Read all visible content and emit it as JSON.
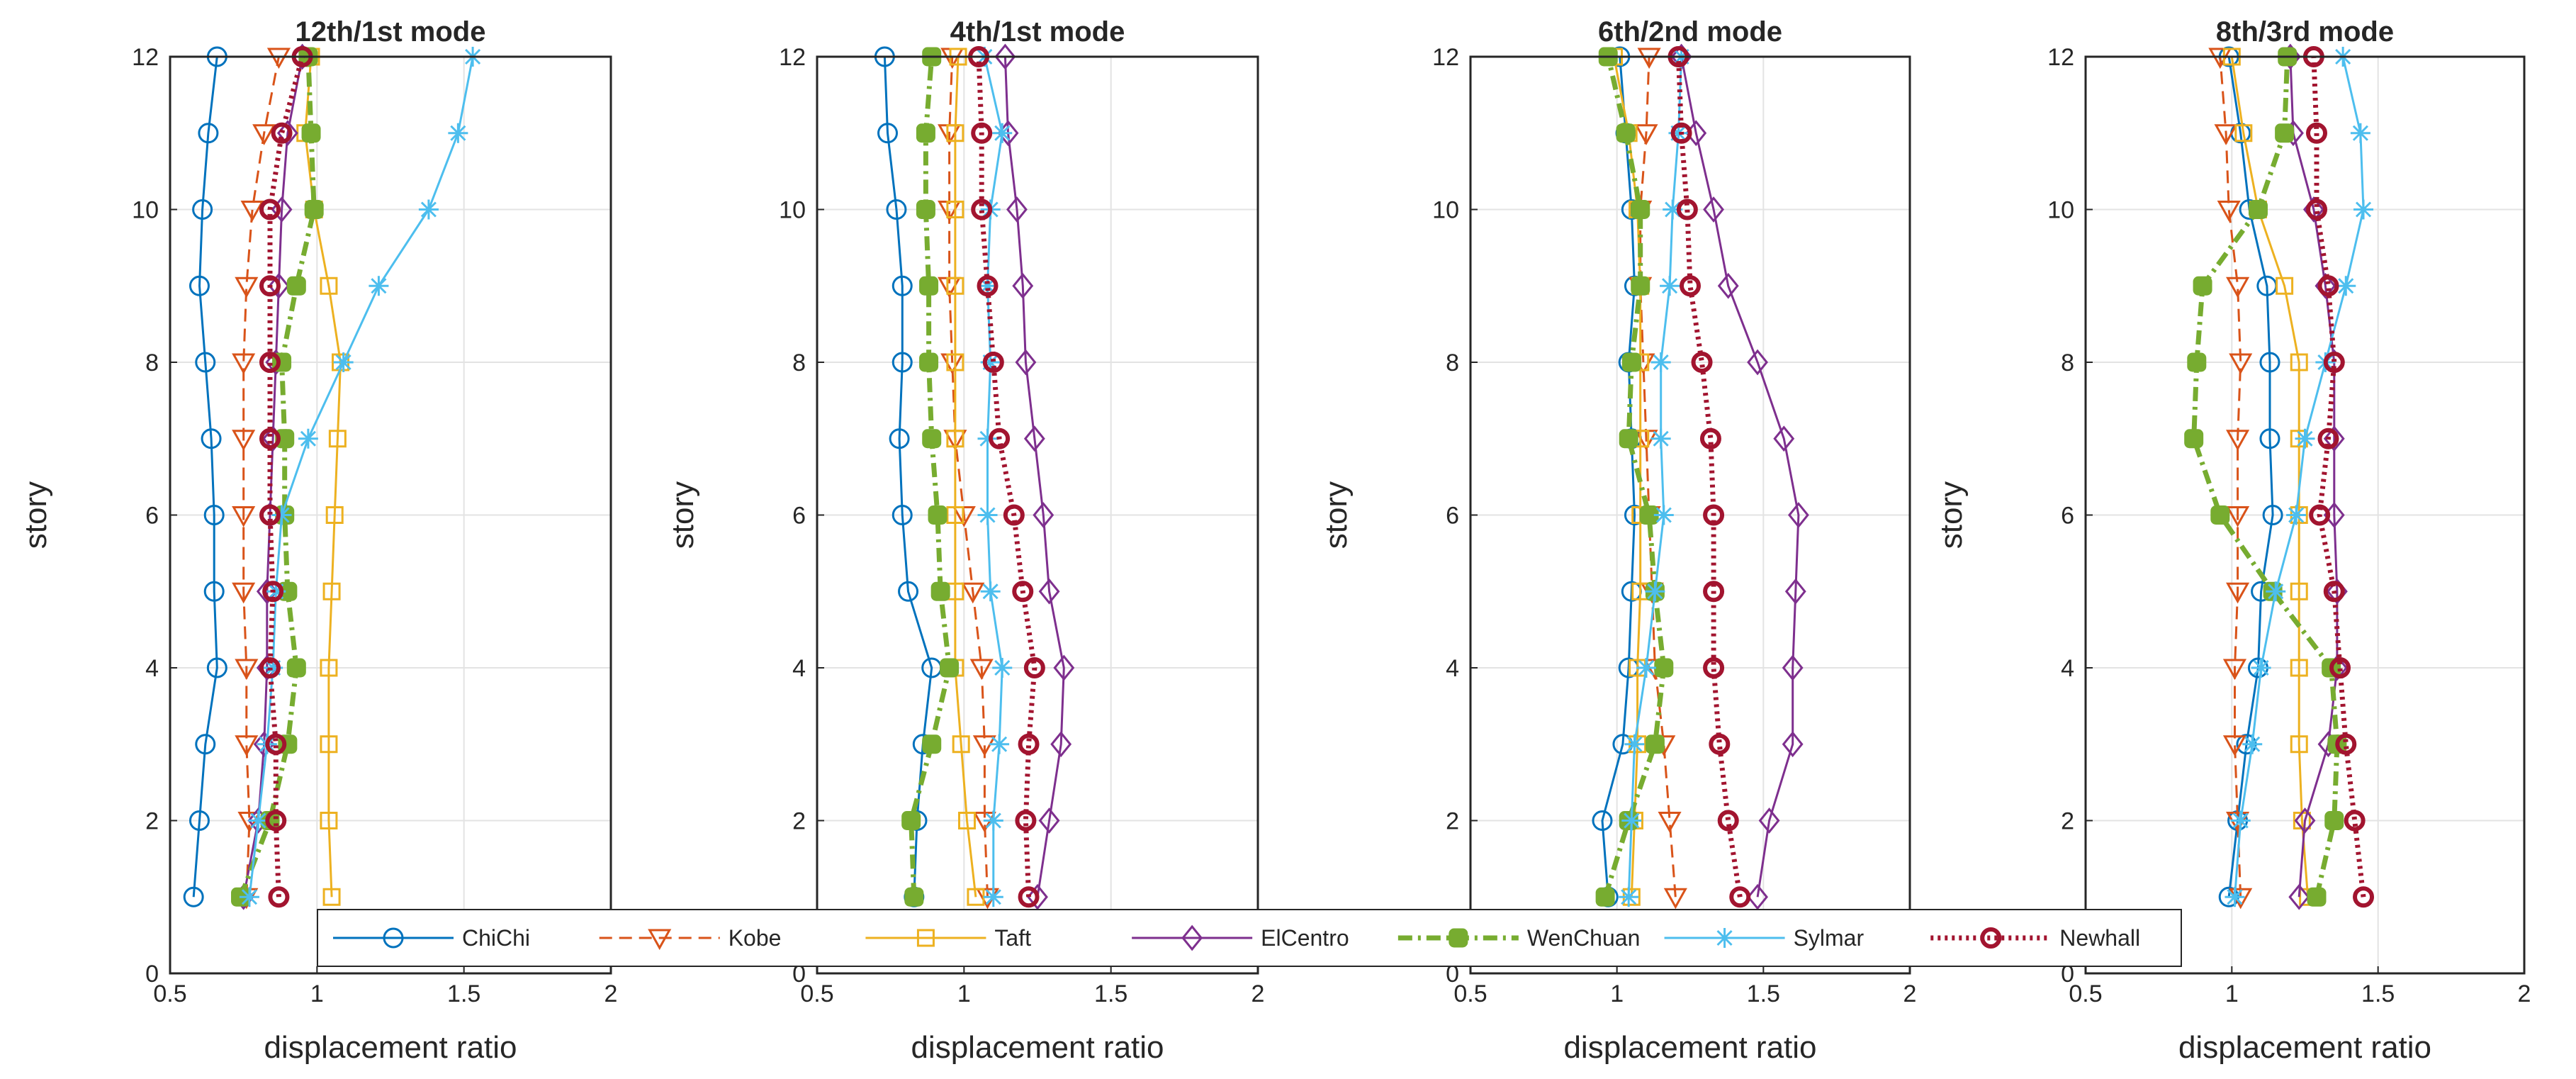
{
  "chart_data": {
    "type": "line",
    "xlabel": "displacement ratio",
    "ylabel": "story",
    "xlim": [
      0.5,
      2
    ],
    "ylim": [
      0,
      12
    ],
    "xticks": [
      "0.5",
      "1",
      "1.5",
      "2"
    ],
    "yticks": [
      "0",
      "2",
      "4",
      "6",
      "8",
      "10",
      "12"
    ],
    "grid": true,
    "legend_placement": "bottom-center",
    "stories": [
      1,
      2,
      3,
      4,
      5,
      6,
      7,
      8,
      9,
      10,
      11,
      12
    ],
    "series_styles": [
      {
        "name": "ChiChi",
        "color": "#0072BD",
        "marker": "circle",
        "dash": "solid"
      },
      {
        "name": "Kobe",
        "color": "#D95319",
        "marker": "triangle-down",
        "dash": "dashed"
      },
      {
        "name": "Taft",
        "color": "#EDB120",
        "marker": "square",
        "dash": "solid"
      },
      {
        "name": "ElCentro",
        "color": "#7E2F8E",
        "marker": "diamond",
        "dash": "solid"
      },
      {
        "name": "WenChuan",
        "color": "#77AC30",
        "marker": "filled-square",
        "dash": "dashdot"
      },
      {
        "name": "Sylmar",
        "color": "#4DBEEE",
        "marker": "asterisk",
        "dash": "solid"
      },
      {
        "name": "Newhall",
        "color": "#A2142F",
        "marker": "bold-circle",
        "dash": "dotted"
      }
    ],
    "panels": [
      {
        "title": "12th/1st mode",
        "series": [
          {
            "name": "ChiChi",
            "values": [
              0.58,
              0.6,
              0.62,
              0.66,
              0.65,
              0.65,
              0.64,
              0.62,
              0.6,
              0.61,
              0.63,
              0.66
            ]
          },
          {
            "name": "Kobe",
            "values": [
              0.76,
              0.77,
              0.76,
              0.76,
              0.75,
              0.75,
              0.75,
              0.75,
              0.76,
              0.78,
              0.82,
              0.87
            ]
          },
          {
            "name": "Taft",
            "values": [
              1.05,
              1.04,
              1.04,
              1.04,
              1.05,
              1.06,
              1.07,
              1.08,
              1.04,
              0.99,
              0.96,
              0.98
            ]
          },
          {
            "name": "ElCentro",
            "values": [
              0.75,
              0.8,
              0.82,
              0.83,
              0.83,
              0.84,
              0.85,
              0.86,
              0.87,
              0.88,
              0.9,
              0.95
            ]
          },
          {
            "name": "WenChuan",
            "values": [
              0.74,
              0.84,
              0.9,
              0.93,
              0.9,
              0.89,
              0.89,
              0.88,
              0.93,
              0.99,
              0.98,
              0.97
            ]
          },
          {
            "name": "Sylmar",
            "values": [
              0.77,
              0.8,
              0.83,
              0.85,
              0.86,
              0.88,
              0.97,
              1.09,
              1.21,
              1.38,
              1.48,
              1.53
            ]
          },
          {
            "name": "Newhall",
            "values": [
              0.87,
              0.86,
              0.86,
              0.84,
              0.85,
              0.84,
              0.84,
              0.84,
              0.84,
              0.84,
              0.88,
              0.95
            ]
          }
        ]
      },
      {
        "title": "4th/1st mode",
        "series": [
          {
            "name": "ChiChi",
            "values": [
              0.83,
              0.84,
              0.86,
              0.89,
              0.81,
              0.79,
              0.78,
              0.79,
              0.79,
              0.77,
              0.74,
              0.73
            ]
          },
          {
            "name": "Kobe",
            "values": [
              1.08,
              1.07,
              1.07,
              1.06,
              1.03,
              1.0,
              0.97,
              0.96,
              0.95,
              0.95,
              0.95,
              0.96
            ]
          },
          {
            "name": "Taft",
            "values": [
              1.04,
              1.01,
              0.99,
              0.97,
              0.97,
              0.97,
              0.97,
              0.97,
              0.97,
              0.97,
              0.97,
              0.98
            ]
          },
          {
            "name": "ElCentro",
            "values": [
              1.25,
              1.29,
              1.33,
              1.34,
              1.29,
              1.27,
              1.24,
              1.21,
              1.2,
              1.18,
              1.15,
              1.14
            ]
          },
          {
            "name": "WenChuan",
            "values": [
              0.83,
              0.82,
              0.89,
              0.95,
              0.92,
              0.91,
              0.89,
              0.88,
              0.88,
              0.87,
              0.87,
              0.89
            ]
          },
          {
            "name": "Sylmar",
            "values": [
              1.1,
              1.1,
              1.12,
              1.13,
              1.09,
              1.08,
              1.08,
              1.09,
              1.08,
              1.09,
              1.13,
              1.07
            ]
          },
          {
            "name": "Newhall",
            "values": [
              1.22,
              1.21,
              1.22,
              1.24,
              1.2,
              1.17,
              1.12,
              1.1,
              1.08,
              1.06,
              1.06,
              1.05
            ]
          }
        ]
      },
      {
        "title": "6th/2nd mode",
        "series": [
          {
            "name": "ChiChi",
            "values": [
              0.97,
              0.95,
              1.02,
              1.04,
              1.05,
              1.06,
              1.05,
              1.04,
              1.06,
              1.05,
              1.03,
              1.01
            ]
          },
          {
            "name": "Kobe",
            "values": [
              1.2,
              1.18,
              1.16,
              1.13,
              1.12,
              1.11,
              1.1,
              1.09,
              1.08,
              1.08,
              1.1,
              1.11
            ]
          },
          {
            "name": "Taft",
            "values": [
              1.05,
              1.06,
              1.07,
              1.07,
              1.08,
              1.08,
              1.08,
              1.08,
              1.08,
              1.07,
              1.04,
              0.99
            ]
          },
          {
            "name": "ElCentro",
            "values": [
              1.48,
              1.52,
              1.6,
              1.6,
              1.61,
              1.62,
              1.57,
              1.48,
              1.38,
              1.33,
              1.27,
              1.22
            ]
          },
          {
            "name": "WenChuan",
            "values": [
              0.96,
              1.04,
              1.13,
              1.16,
              1.13,
              1.11,
              1.04,
              1.05,
              1.08,
              1.08,
              1.03,
              0.97
            ]
          },
          {
            "name": "Sylmar",
            "values": [
              1.04,
              1.05,
              1.06,
              1.1,
              1.13,
              1.16,
              1.15,
              1.15,
              1.18,
              1.19,
              1.21,
              1.22
            ]
          },
          {
            "name": "Newhall",
            "values": [
              1.42,
              1.38,
              1.35,
              1.33,
              1.33,
              1.33,
              1.32,
              1.29,
              1.25,
              1.24,
              1.22,
              1.21
            ]
          }
        ]
      },
      {
        "title": "8th/3rd mode",
        "series": [
          {
            "name": "ChiChi",
            "values": [
              0.99,
              1.02,
              1.05,
              1.09,
              1.1,
              1.14,
              1.13,
              1.13,
              1.12,
              1.06,
              1.03,
              0.99
            ]
          },
          {
            "name": "Kobe",
            "values": [
              1.03,
              1.02,
              1.01,
              1.01,
              1.02,
              1.02,
              1.02,
              1.03,
              1.02,
              0.99,
              0.98,
              0.96
            ]
          },
          {
            "name": "Taft",
            "values": [
              1.26,
              1.24,
              1.23,
              1.23,
              1.23,
              1.23,
              1.23,
              1.23,
              1.18,
              1.09,
              1.04,
              1.0
            ]
          },
          {
            "name": "ElCentro",
            "values": [
              1.23,
              1.25,
              1.33,
              1.36,
              1.36,
              1.35,
              1.35,
              1.35,
              1.32,
              1.28,
              1.21,
              1.2
            ]
          },
          {
            "name": "WenChuan",
            "values": [
              1.29,
              1.35,
              1.36,
              1.34,
              1.14,
              0.96,
              0.87,
              0.88,
              0.9,
              1.09,
              1.18,
              1.19
            ]
          },
          {
            "name": "Sylmar",
            "values": [
              1.01,
              1.03,
              1.07,
              1.1,
              1.15,
              1.22,
              1.25,
              1.32,
              1.39,
              1.45,
              1.44,
              1.38
            ]
          },
          {
            "name": "Newhall",
            "values": [
              1.45,
              1.42,
              1.39,
              1.37,
              1.35,
              1.3,
              1.33,
              1.35,
              1.33,
              1.29,
              1.29,
              1.28
            ]
          }
        ]
      }
    ]
  }
}
